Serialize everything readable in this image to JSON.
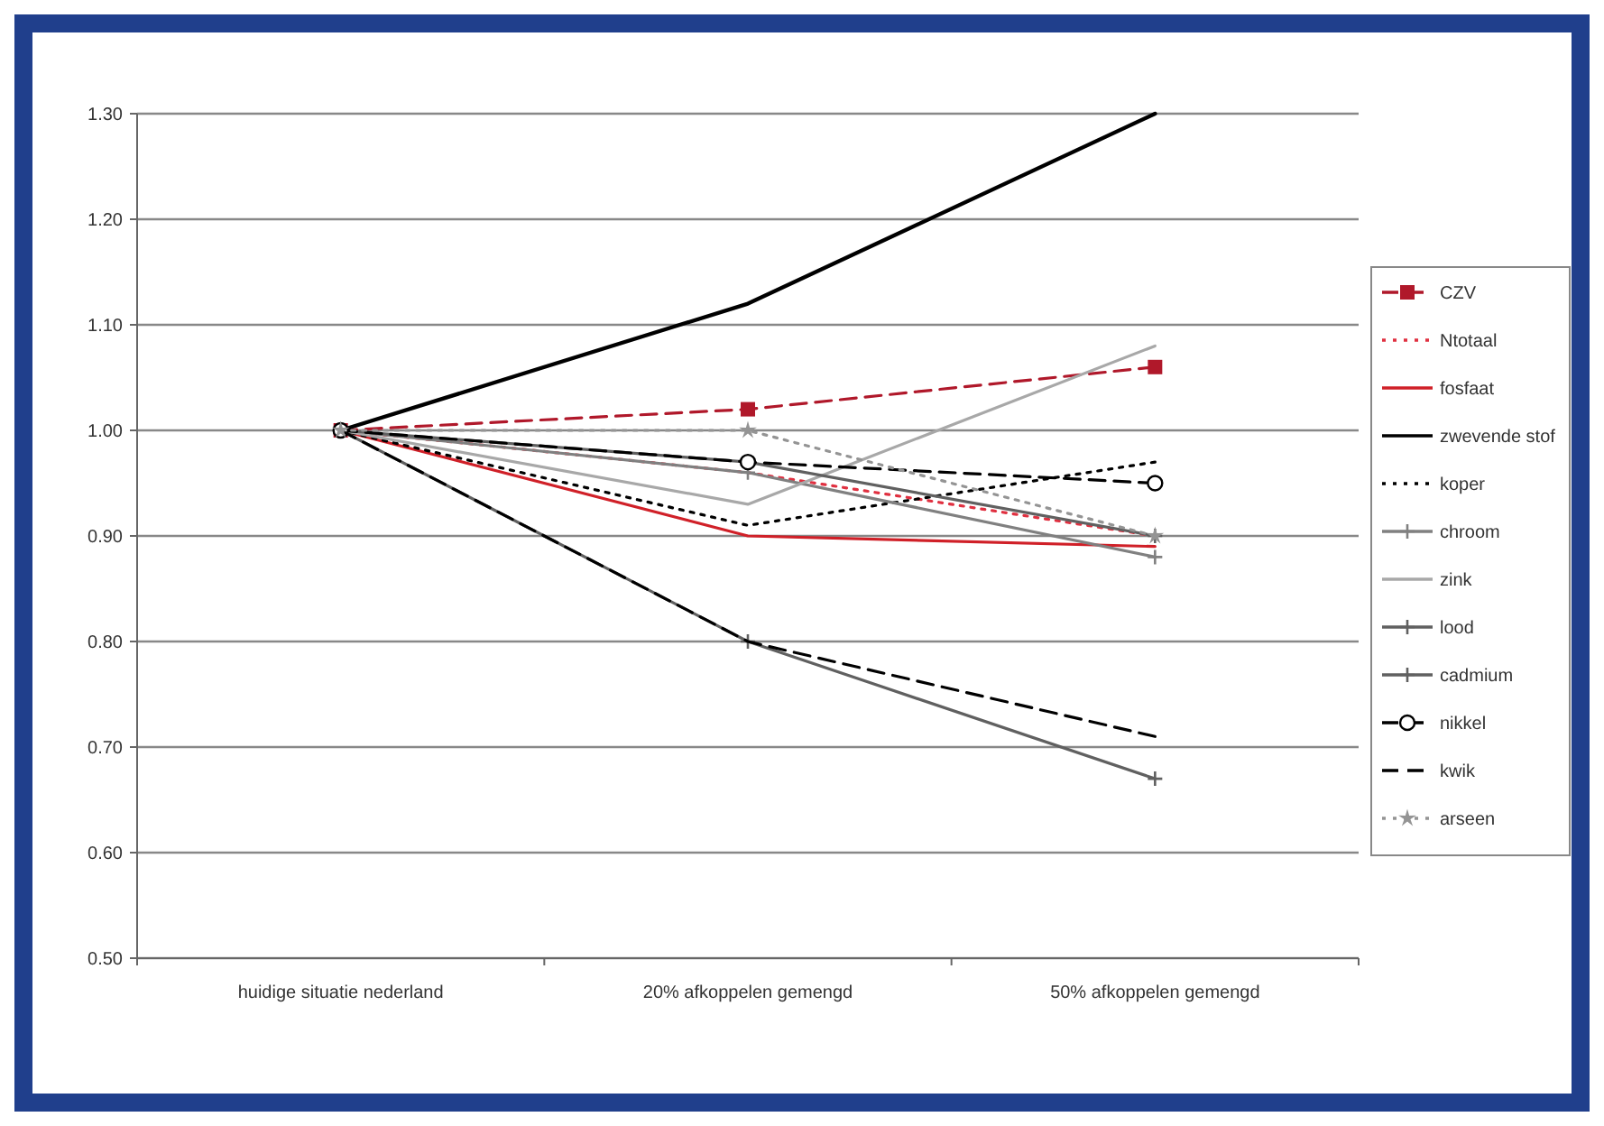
{
  "chart_data": {
    "type": "line",
    "categories": [
      "huidige situatie nederland",
      "20% afkoppelen gemengd",
      "50% afkoppelen gemengd"
    ],
    "ylim": [
      0.5,
      1.3
    ],
    "yticks": [
      {
        "value": 0.5,
        "label": "0.50"
      },
      {
        "value": 0.6,
        "label": "0.60"
      },
      {
        "value": 0.7,
        "label": "0.70"
      },
      {
        "value": 0.8,
        "label": "0.80"
      },
      {
        "value": 0.9,
        "label": "0.90"
      },
      {
        "value": 1.0,
        "label": "1.00"
      },
      {
        "value": 1.1,
        "label": "1.10"
      },
      {
        "value": 1.2,
        "label": "1.20"
      },
      {
        "value": 1.3,
        "label": "1.30"
      }
    ],
    "grid": "y",
    "legend": "right",
    "series": [
      {
        "name": "CZV",
        "color": "#b0182a",
        "values": [
          1.0,
          1.02,
          1.06
        ],
        "line_style": "dashed",
        "marker": "square"
      },
      {
        "name": "Ntotaal",
        "color": "#e03040",
        "values": [
          1.0,
          0.96,
          0.9
        ],
        "line_style": "dotted",
        "marker": "none"
      },
      {
        "name": "fosfaat",
        "color": "#d02028",
        "values": [
          1.0,
          0.9,
          0.89
        ],
        "line_style": "solid",
        "marker": "none"
      },
      {
        "name": "zwevende stof",
        "color": "#000000",
        "values": [
          1.0,
          1.12,
          1.3
        ],
        "line_style": "solid",
        "marker": "none"
      },
      {
        "name": "koper",
        "color": "#000000",
        "values": [
          1.0,
          0.91,
          0.97
        ],
        "line_style": "dotted",
        "marker": "none"
      },
      {
        "name": "chroom",
        "color": "#808080",
        "values": [
          1.0,
          0.96,
          0.88
        ],
        "line_style": "solid",
        "marker": "cross"
      },
      {
        "name": "zink",
        "color": "#a8a8a8",
        "values": [
          1.0,
          0.93,
          1.08
        ],
        "line_style": "solid",
        "marker": "none"
      },
      {
        "name": "lood",
        "color": "#606060",
        "values": [
          1.0,
          0.97,
          0.9
        ],
        "line_style": "solid",
        "marker": "cross"
      },
      {
        "name": "cadmium",
        "color": "#606060",
        "values": [
          1.0,
          0.8,
          0.67
        ],
        "line_style": "solid",
        "marker": "cross"
      },
      {
        "name": "nikkel",
        "color": "#000000",
        "values": [
          1.0,
          0.97,
          0.95
        ],
        "line_style": "dashed",
        "marker": "circle"
      },
      {
        "name": "kwik",
        "color": "#000000",
        "values": [
          1.0,
          0.8,
          0.71
        ],
        "line_style": "dashed",
        "marker": "none"
      },
      {
        "name": "arseen",
        "color": "#949494",
        "values": [
          1.0,
          1.0,
          0.9
        ],
        "line_style": "dotted",
        "marker": "star"
      }
    ]
  }
}
